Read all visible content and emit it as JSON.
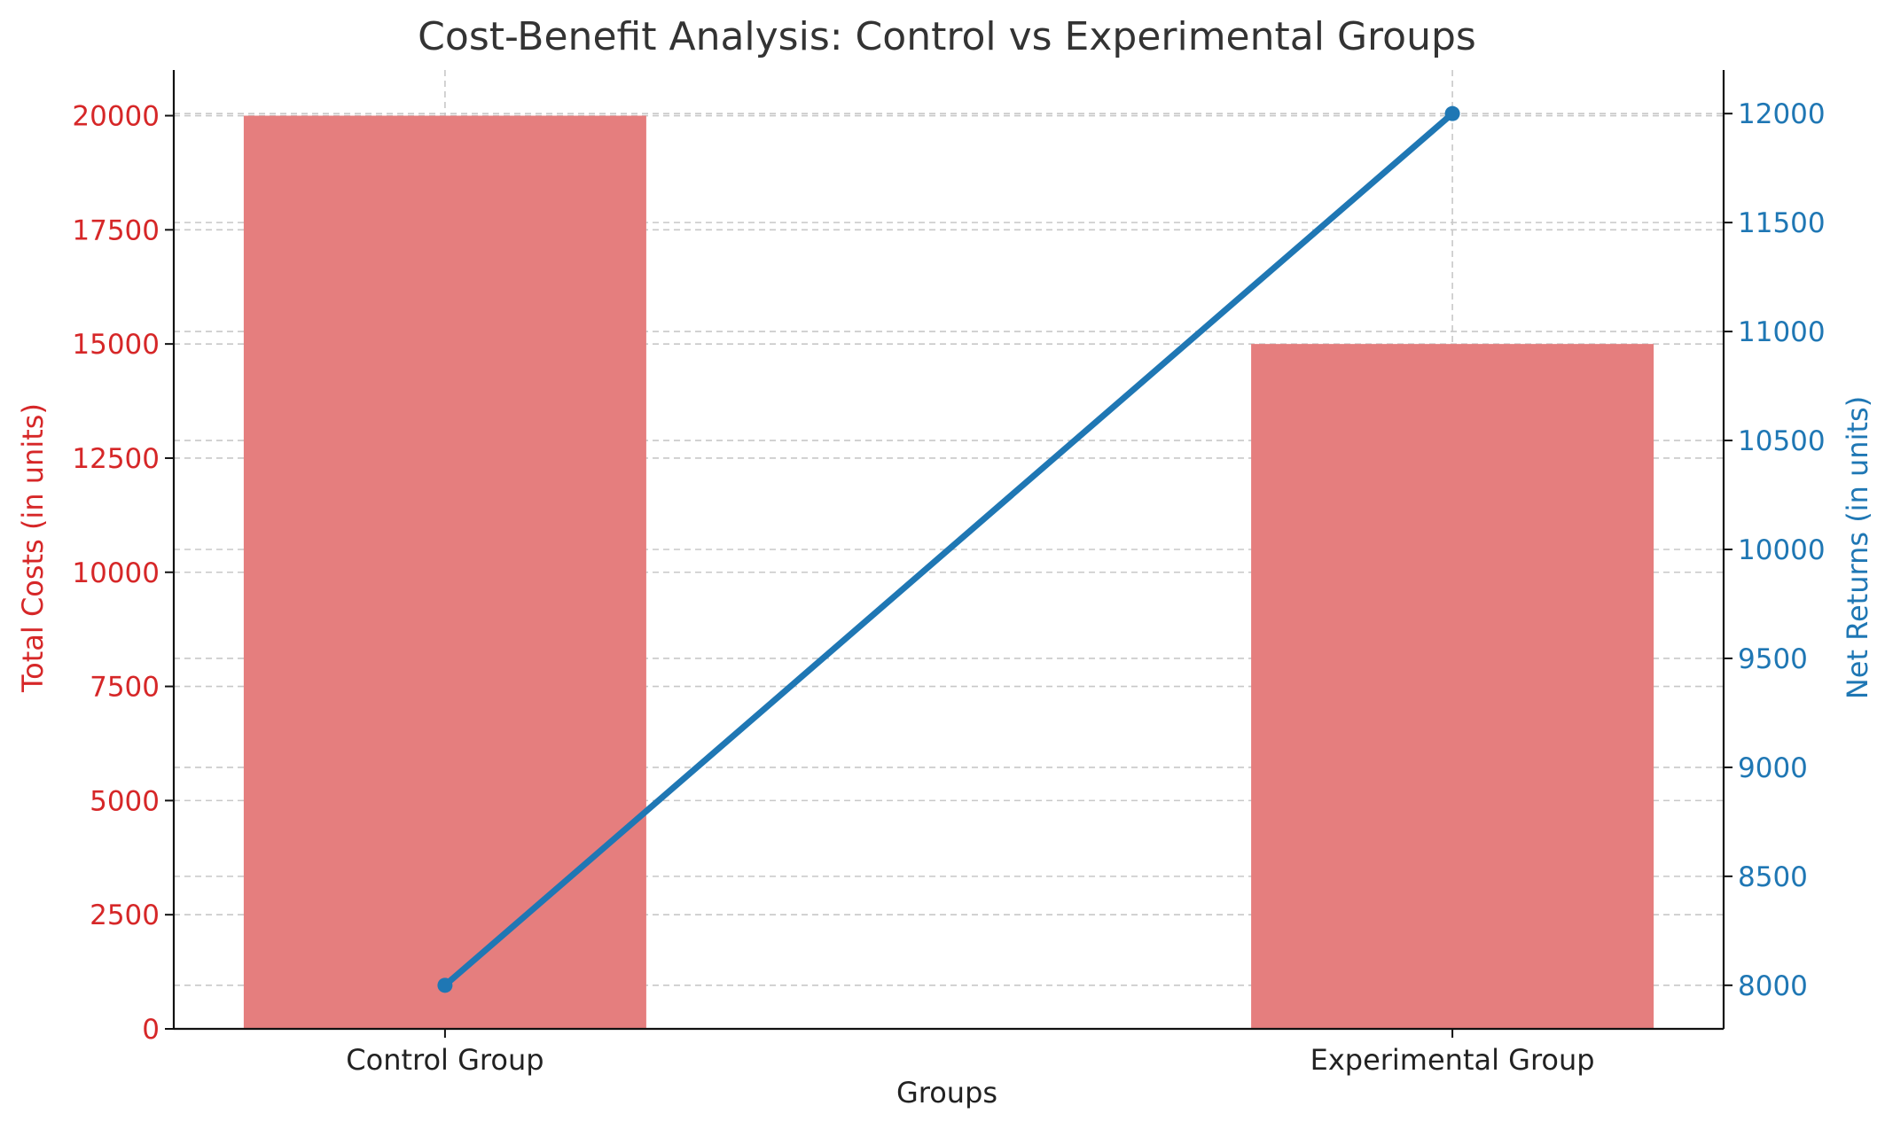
{
  "chart_data": {
    "type": "bar+line",
    "title": "Cost-Benefit Analysis: Control vs Experimental Groups",
    "xlabel": "Groups",
    "categories": [
      "Control Group",
      "Experimental Group"
    ],
    "series": [
      {
        "name": "Total Costs",
        "kind": "bar",
        "axis": "left",
        "values": [
          20000,
          15000
        ],
        "color": "#e57e7e"
      },
      {
        "name": "Net Returns",
        "kind": "line",
        "axis": "right",
        "values": [
          8000,
          12000
        ],
        "color": "#1f77b4"
      }
    ],
    "left_axis": {
      "label": "Total Costs (in units)",
      "color": "#d62728",
      "ylim": [
        0,
        21000
      ],
      "ticks": [
        0,
        2500,
        5000,
        7500,
        10000,
        12500,
        15000,
        17500,
        20000
      ]
    },
    "right_axis": {
      "label": "Net Returns (in units)",
      "color": "#1f77b4",
      "ylim": [
        7800,
        12200
      ],
      "ticks": [
        8000,
        8500,
        9000,
        9500,
        10000,
        10500,
        11000,
        11500,
        12000
      ]
    },
    "grid": true,
    "grid_style": "dashed"
  }
}
